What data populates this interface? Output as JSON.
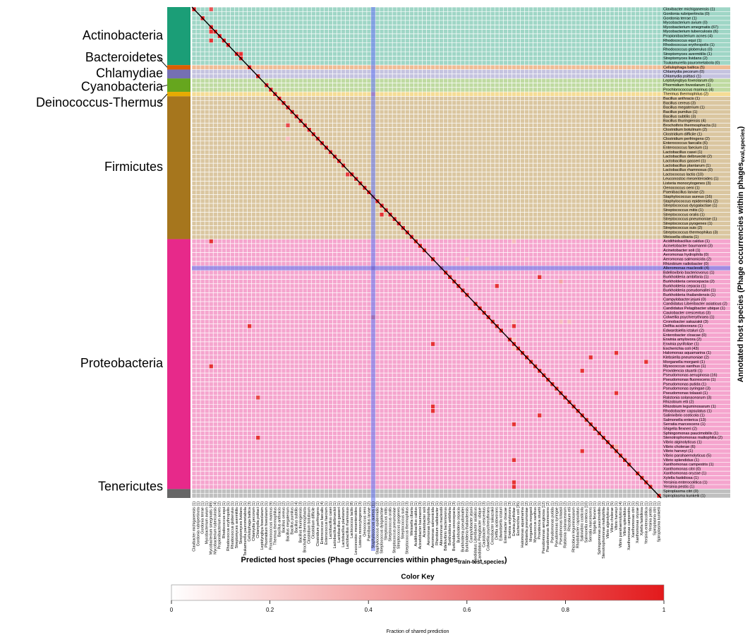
{
  "chart_data": {
    "type": "heatmap",
    "x_title": "Predicted host species (Phage occurrencies within phages",
    "x_title_sub": "train-test,species",
    "x_title_close": ")",
    "y_title": "Annotated host species (Phage occurrencies within phages",
    "y_title_sub": "eval,species",
    "y_title_close": ")",
    "groups": [
      {
        "name": "Actinobacteria",
        "color": "#1b9e77",
        "rows": [
          "Clavibacter michiganensis (1)",
          "Gordonia rubripertincta (0)",
          "Gordonia terrae (1)",
          "Mycobacterium avium (0)",
          "Mycobacterium smegmatis (67)",
          "Mycobacterium tuberculosis (6)",
          "Propionibacterium acnes (4)",
          "Rhodococcus equi (1)",
          "Rhodococcus erythropolis (1)",
          "Rhodococcus globerulus (0)",
          "Streptomyces avermitilis (1)",
          "Streptomyces lividans (2)",
          "Tsukamurella paurometabola (0)"
        ],
        "columns": [
          "Clavibacter michiganensis (1)",
          "Gordonia rubripertincta (1)",
          "Gordonia terrae (1)",
          "Mycobacterium avium (1)",
          "Mycobacterium smegmatis (49)",
          "Mycobacterium tuberculosis (4)",
          "Propionibacterium acnes (2)",
          "Rhodococcus equi (1)",
          "Rhodococcus erythropolis (1)",
          "Rhodococcus globerulus (1)",
          "Streptomyces avermitilis (1)",
          "Streptomyces lividans (1)",
          "Tsukamurella paurometabola (1)"
        ]
      },
      {
        "name": "Bacteroidetes",
        "color": "#d95f02",
        "rows": [
          "Cellulophaga baltica (5)"
        ],
        "columns": [
          "Cellulophaga baltica (3)"
        ]
      },
      {
        "name": "Chlamydiae",
        "color": "#7570b3",
        "rows": [
          "Chlamydia pecorum (0)",
          "Chlamydia psittaci (1)"
        ],
        "columns": [
          "Chlamydia pecorum (1)",
          "Chlamydia psittaci (1)"
        ]
      },
      {
        "name": "Cyanobacteria",
        "color": "#66a61e",
        "rows": [
          "Leptolyngbya foveolarum (0)",
          "Phormidium foveolarum (1)",
          "Prochlorococcus marinus (4)"
        ],
        "columns": [
          "Leptolyngbya foveolarum (1)",
          "Phormidium foveolarum (1)",
          "Prochlorococcus marinus (9)"
        ]
      },
      {
        "name": "Deinococcus-Thermus",
        "color": "#e6ab02",
        "rows": [
          "Thermus thermophilus (2)"
        ],
        "columns": [
          "Thermus thermophilus (2)"
        ]
      },
      {
        "name": "Firmicutes",
        "color": "#a6761d",
        "rows": [
          "Bacillus anthracis (1)",
          "Bacillus cereus (3)",
          "Bacillus megaterium (1)",
          "Bacillus pumilus (1)",
          "Bacillus subtilis (3)",
          "Bacillus thuringiensis (4)",
          "Brochothrix thermosphacta (1)",
          "Clostridium botulinum (2)",
          "Clostridium difficile (1)",
          "Clostridium perfringens (2)",
          "Enterococcus faecalis (6)",
          "Enterococcus faecium (1)",
          "Lactobacillus casei (1)",
          "Lactobacillus delbrueckii (2)",
          "Lactobacillus gasseri (1)",
          "Lactobacillus plantarum (1)",
          "Lactobacillus rhamnosus (0)",
          "Lactococcus lactis (10)",
          "Leuconostoc mesenteroides (1)",
          "Listeria monocytogenes (3)",
          "Oenococcus oeni (1)",
          "Paenibacillus larvae (2)",
          "Staphylococcus aureus (16)",
          "Staphylococcus epidermidis (2)",
          "Streptococcus dysgalactiae (1)",
          "Streptococcus mitis (1)",
          "Streptococcus oralis (1)",
          "Streptococcus pneumoniae (1)",
          "Streptococcus pyogenes (1)",
          "Streptococcus suis (2)",
          "Streptococcus thermophilus (3)",
          "Weissella cibaria (1)"
        ],
        "columns": [
          "Bacillus anthracis (1)",
          "Bacillus cereus (2)",
          "Bacillus megaterium (1)",
          "Bacillus pumilus (1)",
          "Bacillus subtilis (4)",
          "Bacillus thuringiensis (3)",
          "Brochothrix thermosphacta (1)",
          "Clostridium botulinum (1)",
          "Clostridium difficile (2)",
          "Clostridium perfringens (1)",
          "Enterococcus faecalis (4)",
          "Enterococcus faecium (1)",
          "Lactobacillus casei (1)",
          "Lactobacillus delbrueckii (1)",
          "Lactobacillus gasseri (1)",
          "Lactobacillus plantarum (1)",
          "Lactobacillus rhamnosus (1)",
          "Lactococcus lactis (8)",
          "Leuconostoc mesenteroides (1)",
          "Listeria monocytogenes (3)",
          "Oenococcus oeni (1)",
          "Paenibacillus larvae (2)",
          "Staphylococcus aureus (11)",
          "Staphylococcus epidermidis (2)",
          "Streptococcus dysgalactiae (1)",
          "Streptococcus mitis (1)",
          "Streptococcus oralis (1)",
          "Streptococcus pneumoniae (1)",
          "Streptococcus pyogenes (1)",
          "Streptococcus suis (1)",
          "Streptococcus thermophilus (3)",
          "Weissella cibaria (1)"
        ]
      },
      {
        "name": "Proteobacteria",
        "color": "#e7298a",
        "rows": [
          "Acidithiobacillus caldus (1)",
          "Acinetobacter baumannii (3)",
          "Acinetobacter soli (1)",
          "Aeromonas hydrophila (0)",
          "Aeromonas salmonicida (2)",
          "Rhizobium radiobacter (0)",
          "Alteromonas macleodii (4)",
          "Bdellovibrio bacteriovorus (1)",
          "Burkholderia ambifaria (1)",
          "Burkholderia cenocepacia (2)",
          "Burkholderia cepacia (1)",
          "Burkholderia pseudomallei (1)",
          "Burkholderia thailandensis (1)",
          "Campylobacter jejuni (0)",
          "Candidatus Liberibacter asiaticus (2)",
          "Candidatus Pelagibacter ubique (1)",
          "Caulobacter crescentus (3)",
          "Colwellia psychrerythraea (1)",
          "Cronobacter sakazakii (3)",
          "Delftia acidovorans (1)",
          "Edwardsiella ictaluri (2)",
          "Enterobacter cloacae (0)",
          "Erwinia amylovora (2)",
          "Erwinia pyrifoliae (1)",
          "Escherichia coli (43)",
          "Halomonas aquamarina (1)",
          "Klebsiella pneumoniae (2)",
          "Morganella morganii (1)",
          "Myxococcus xanthus (1)",
          "Providencia stuartii (1)",
          "Pseudomonas aeruginosa (16)",
          "Pseudomonas fluorescens (1)",
          "Pseudomonas putida (1)",
          "Pseudomonas syringae (3)",
          "Pseudomonas tolaasii (1)",
          "Ralstonia solanacearum (3)",
          "Rhizobium etli (2)",
          "Rhizobium leguminosarum (1)",
          "Rhodobacter capsulatus (1)",
          "Salinivibrio costicola (1)",
          "Salmonella enterica (13)",
          "Serratia marcescens (1)",
          "Shigella flexneri (2)",
          "Sphingomonas paucimobilis (1)",
          "Stenotrophomonas maltophilia (2)",
          "Vibrio alginolyticus (1)",
          "Vibrio cholerae (6)",
          "Vibrio harveyi (1)",
          "Vibrio parahaemolyticus (5)",
          "Vibrio splendidus (1)",
          "Xanthomonas campestris (1)",
          "Xanthomonas citri (0)",
          "Xanthomonas oryzae (1)",
          "Xylella fastidiosa (1)",
          "Yersinia enterocolitica (1)",
          "Yersinia pestis (1)"
        ],
        "columns": [
          "Acidithiobacillus caldus (1)",
          "Acinetobacter baumannii (3)",
          "Acinetobacter soli (1)",
          "Aeromonas hydrophila (1)",
          "Aeromonas salmonicida (2)",
          "Rhizobium radiobacter (1)",
          "Alteromonas macleodii (2)",
          "Bdellovibrio bacteriovorus (1)",
          "Burkholderia ambifaria (1)",
          "Burkholderia cenocepacia (3)",
          "Burkholderia cepacia (1)",
          "Burkholderia pseudomallei (2)",
          "Burkholderia thailandensis (1)",
          "Campylobacter jejuni (2)",
          "Candidatus Liberibacter asiaticus (1)",
          "Candidatus Pelagibacter ubique (1)",
          "Caulobacter crescentus (3)",
          "Colwellia psychrerythraea (1)",
          "Cronobacter sakazakii (2)",
          "Delftia acidovorans (1)",
          "Edwardsiella ictaluri (1)",
          "Enterobacter cloacae (1)",
          "Erwinia amylovora (3)",
          "Erwinia pyrifoliae (1)",
          "Escherichia coli (35)",
          "Halomonas aquamarina (1)",
          "Klebsiella pneumoniae (2)",
          "Morganella morganii (1)",
          "Myxococcus xanthus (1)",
          "Providencia stuartii (1)",
          "Pseudomonas aeruginosa (12)",
          "Pseudomonas fluorescens (2)",
          "Pseudomonas putida (1)",
          "Pseudomonas syringae (2)",
          "Pseudomonas tolaasii (1)",
          "Ralstonia solanacearum (2)",
          "Rhizobium etli (1)",
          "Rhizobium leguminosarum (1)",
          "Rhodobacter capsulatus (1)",
          "Salinivibrio costicola (1)",
          "Salmonella enterica (10)",
          "Serratia marcescens (1)",
          "Shigella flexneri (1)",
          "Sphingomonas paucimobilis (1)",
          "Stenotrophomonas maltophilia (2)",
          "Vibrio alginolyticus (1)",
          "Vibrio cholerae (5)",
          "Vibrio harveyi (1)",
          "Vibrio parahaemolyticus (4)",
          "Vibrio splendidus (1)",
          "Xanthomonas campestris (1)",
          "Xanthomonas citri (1)",
          "Xanthomonas oryzae (2)",
          "Xylella fastidiosa (1)",
          "Yersinia enterocolitica (1)",
          "Yersinia pestis (1)"
        ]
      },
      {
        "name": "Tenericutes",
        "color": "#666666",
        "rows": [
          "Spiroplasma citri (0)",
          "Spiroplasma kunkelii (1)"
        ],
        "columns": [
          "Spiroplasma citri (1)",
          "Spiroplasma kunkelii (1)"
        ]
      }
    ],
    "cells": [
      [
        0,
        0,
        1
      ],
      [
        2,
        2,
        1
      ],
      [
        4,
        4,
        1
      ],
      [
        5,
        5,
        1
      ],
      [
        6,
        6,
        1
      ],
      [
        7,
        7,
        1
      ],
      [
        8,
        8,
        1
      ],
      [
        10,
        10,
        1
      ],
      [
        11,
        11,
        1
      ],
      [
        13,
        13,
        1
      ],
      [
        15,
        15,
        1
      ],
      [
        17,
        17,
        1
      ],
      [
        18,
        18,
        1
      ],
      [
        19,
        19,
        1
      ],
      [
        20,
        20,
        1
      ],
      [
        21,
        21,
        1
      ],
      [
        22,
        22,
        1
      ],
      [
        23,
        23,
        1
      ],
      [
        24,
        24,
        1
      ],
      [
        25,
        25,
        1
      ],
      [
        26,
        26,
        1
      ],
      [
        27,
        27,
        1
      ],
      [
        28,
        28,
        1
      ],
      [
        29,
        29,
        1
      ],
      [
        30,
        30,
        1
      ],
      [
        31,
        31,
        1
      ],
      [
        32,
        32,
        1
      ],
      [
        33,
        33,
        1
      ],
      [
        34,
        34,
        1
      ],
      [
        35,
        35,
        1
      ],
      [
        37,
        37,
        1
      ],
      [
        38,
        38,
        1
      ],
      [
        39,
        39,
        1
      ],
      [
        40,
        40,
        1
      ],
      [
        41,
        41,
        1
      ],
      [
        42,
        42,
        1
      ],
      [
        43,
        43,
        1
      ],
      [
        44,
        44,
        1
      ],
      [
        45,
        45,
        1
      ],
      [
        46,
        46,
        1
      ],
      [
        47,
        47,
        1
      ],
      [
        48,
        48,
        1
      ],
      [
        49,
        49,
        1
      ],
      [
        50,
        50,
        1
      ],
      [
        51,
        51,
        1
      ],
      [
        52,
        52,
        1
      ],
      [
        53,
        53,
        1
      ],
      [
        54,
        54,
        1
      ],
      [
        56,
        56,
        1
      ],
      [
        58,
        58,
        1
      ],
      [
        59,
        59,
        1
      ],
      [
        60,
        60,
        1
      ],
      [
        61,
        61,
        1
      ],
      [
        62,
        62,
        1
      ],
      [
        63,
        63,
        1
      ],
      [
        64,
        64,
        1
      ],
      [
        66,
        66,
        1
      ],
      [
        67,
        67,
        1
      ],
      [
        68,
        68,
        1
      ],
      [
        69,
        69,
        1
      ],
      [
        70,
        70,
        1
      ],
      [
        71,
        71,
        1
      ],
      [
        72,
        72,
        1
      ],
      [
        74,
        74,
        1
      ],
      [
        75,
        75,
        1
      ],
      [
        76,
        76,
        1
      ],
      [
        77,
        77,
        1
      ],
      [
        78,
        78,
        1
      ],
      [
        79,
        79,
        1
      ],
      [
        80,
        80,
        1
      ],
      [
        81,
        81,
        1
      ],
      [
        82,
        82,
        1
      ],
      [
        83,
        83,
        1
      ],
      [
        84,
        84,
        1
      ],
      [
        85,
        85,
        1
      ],
      [
        86,
        86,
        1
      ],
      [
        87,
        87,
        1
      ],
      [
        88,
        88,
        1
      ],
      [
        89,
        89,
        1
      ],
      [
        90,
        90,
        1
      ],
      [
        91,
        91,
        1
      ],
      [
        92,
        92,
        1
      ],
      [
        93,
        93,
        1
      ],
      [
        94,
        94,
        1
      ],
      [
        95,
        95,
        1
      ],
      [
        96,
        96,
        1
      ],
      [
        97,
        97,
        1
      ],
      [
        98,
        98,
        1
      ],
      [
        99,
        99,
        1
      ],
      [
        100,
        100,
        1
      ],
      [
        101,
        101,
        1
      ],
      [
        102,
        102,
        1
      ],
      [
        104,
        104,
        1
      ],
      [
        105,
        105,
        1
      ],
      [
        106,
        106,
        1
      ],
      [
        107,
        107,
        1
      ],
      [
        109,
        109,
        1
      ],
      [
        0,
        4,
        0.75
      ],
      [
        5,
        4,
        0.9
      ],
      [
        7,
        4,
        0.9
      ],
      [
        10,
        11,
        0.9
      ],
      [
        19,
        42,
        0.5
      ],
      [
        26,
        22,
        0.8
      ],
      [
        29,
        22,
        0.3
      ],
      [
        37,
        36,
        0.85
      ],
      [
        46,
        44,
        0.9
      ],
      [
        52,
        4,
        0.9
      ],
      [
        52,
        75,
        0.3
      ],
      [
        56,
        64,
        0.3
      ],
      [
        58,
        42,
        0.9
      ],
      [
        60,
        81,
        0.9
      ],
      [
        61,
        86,
        0.4
      ],
      [
        62,
        71,
        0.9
      ],
      [
        69,
        42,
        0.7
      ],
      [
        70,
        75,
        0.3
      ],
      [
        70,
        86,
        0.3
      ],
      [
        70,
        88,
        0.3
      ],
      [
        71,
        13,
        0.9
      ],
      [
        71,
        75,
        0.9
      ],
      [
        74,
        75,
        0.3
      ],
      [
        75,
        56,
        0.9
      ],
      [
        76,
        75,
        0.3
      ],
      [
        77,
        99,
        0.9
      ],
      [
        78,
        93,
        0.9
      ],
      [
        79,
        106,
        0.9
      ],
      [
        80,
        4,
        0.9
      ],
      [
        81,
        91,
        0.9
      ],
      [
        86,
        99,
        0.9
      ],
      [
        87,
        15,
        0.8
      ],
      [
        89,
        56,
        0.9
      ],
      [
        90,
        56,
        0.9
      ],
      [
        91,
        81,
        0.9
      ],
      [
        93,
        75,
        0.9
      ],
      [
        96,
        15,
        0.9
      ],
      [
        98,
        99,
        0.4
      ],
      [
        99,
        91,
        0.9
      ],
      [
        101,
        75,
        0.9
      ],
      [
        106,
        75,
        0.9
      ],
      [
        107,
        75,
        0.9
      ]
    ],
    "highlight": {
      "row": 58,
      "col": 42,
      "color": "#6a7cf0"
    },
    "colorscale": [
      "#ffffff",
      "#e31a1c"
    ],
    "color_key": {
      "title": "Color Key",
      "label": "Fraction of shared prediction",
      "lim": [
        0,
        1
      ],
      "ticks": [
        0,
        0.2,
        0.4,
        0.6,
        0.8,
        1
      ]
    }
  }
}
